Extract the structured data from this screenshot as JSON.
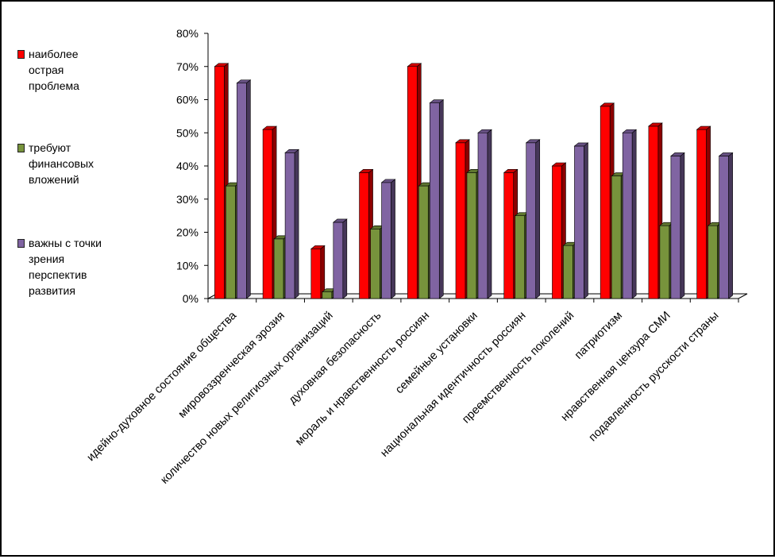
{
  "chart_data": {
    "type": "bar",
    "title": "",
    "xlabel": "",
    "ylabel": "",
    "ylim": [
      0,
      80
    ],
    "yticks": [
      "0%",
      "10%",
      "20%",
      "30%",
      "40%",
      "50%",
      "60%",
      "70%",
      "80%"
    ],
    "grid": false,
    "legend_position": "left",
    "categories": [
      "идейно-духовное состояние общества",
      "мировоззренческая эрозия",
      "количество новых религиозных организаций",
      "духовная безопасность",
      "мораль и нравственность россиян",
      "семейные установки",
      "национальная идентичность россиян",
      "преемственность поколений",
      "патриотизм",
      "нравственная цензура СМИ",
      "подавленность русскости страны"
    ],
    "series": [
      {
        "name": "наиболее\nострая\nпроблема",
        "color": "#ff0000",
        "values": [
          70,
          51,
          15,
          38,
          70,
          47,
          38,
          40,
          58,
          52,
          51
        ]
      },
      {
        "name": "требуют\nфинансовых\nвложений",
        "color": "#77933c",
        "values": [
          34,
          18,
          2,
          21,
          34,
          38,
          25,
          16,
          37,
          22,
          22
        ]
      },
      {
        "name": "важны с точки\nзрения\nперспектив\nразвития",
        "color": "#8064a2",
        "values": [
          65,
          44,
          23,
          35,
          59,
          50,
          47,
          46,
          50,
          43,
          43
        ]
      }
    ]
  }
}
